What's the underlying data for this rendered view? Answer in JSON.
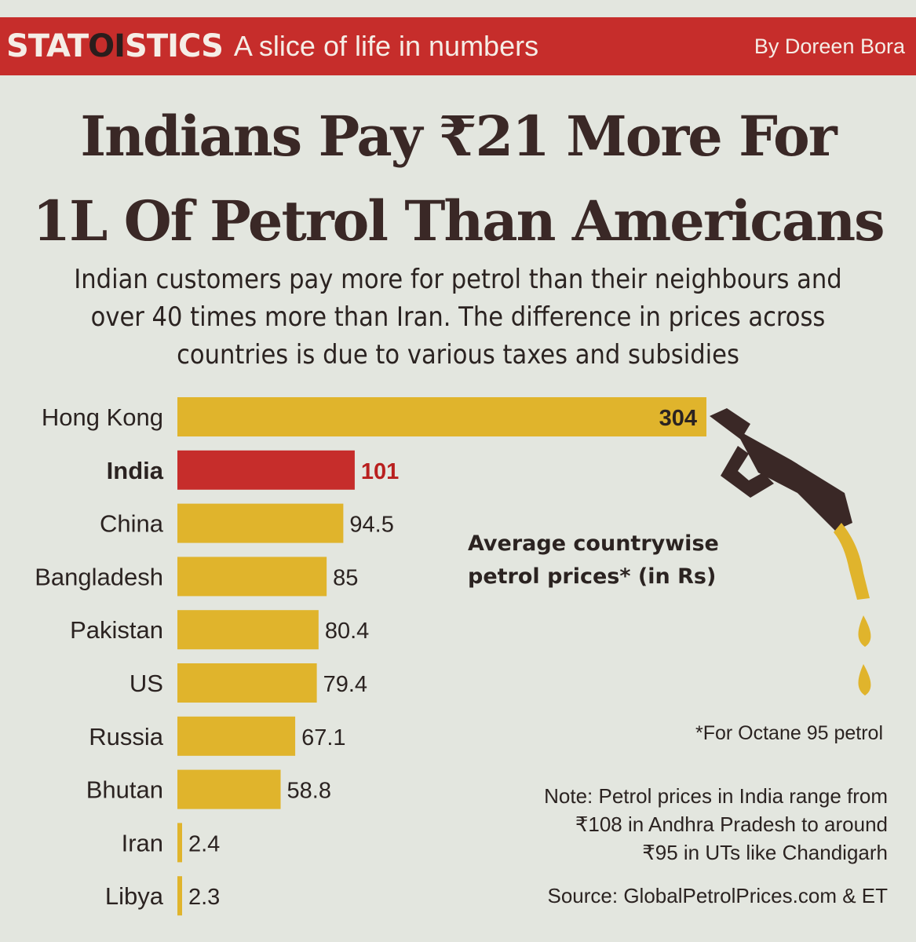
{
  "header": {
    "brand_prefix": "STAT",
    "brand_mid": "OI",
    "brand_suffix": "STICS",
    "tagline": "A slice of life in numbers",
    "byline": "By Doreen Bora"
  },
  "headline": {
    "line1": "Indians Pay ₹21 More For",
    "line2": "1L Of Petrol Than Americans"
  },
  "subhead": {
    "line1": "Indian customers pay more for petrol than their neighbours and",
    "line2": "over 40 times more than Iran. The difference in prices across",
    "line3": "countries is due to various taxes and subsidies"
  },
  "legend": {
    "line1": "Average countrywise",
    "line2": "petrol prices* (in Rs)"
  },
  "footnote": "*For Octane 95 petrol",
  "note": {
    "line1": "Note: Petrol prices in India range from",
    "line2": "₹108 in Andhra Pradesh to around",
    "line3": "₹95 in UTs like Chandigarh"
  },
  "source": "Source: GlobalPetrolPrices.com & ET",
  "colors": {
    "bar": "#e0b42c",
    "highlight": "#c62d2b",
    "text": "#2b2321",
    "highlight_text": "#b9201f"
  },
  "chart_data": {
    "type": "bar",
    "orientation": "horizontal",
    "title": "Average countrywise petrol prices* (in Rs)",
    "categories": [
      "Hong Kong",
      "India",
      "China",
      "Bangladesh",
      "Pakistan",
      "US",
      "Russia",
      "Bhutan",
      "Iran",
      "Libya"
    ],
    "values": [
      304,
      101,
      94.5,
      85,
      80.4,
      79.4,
      67.1,
      58.8,
      2.4,
      2.3
    ],
    "value_labels": [
      "304",
      "101",
      "94.5",
      "85",
      "80.4",
      "79.4",
      "67.1",
      "58.8",
      "2.4",
      "2.3"
    ],
    "highlight": "India",
    "xlim": [
      0,
      304
    ],
    "grid": false,
    "legend": "none"
  }
}
